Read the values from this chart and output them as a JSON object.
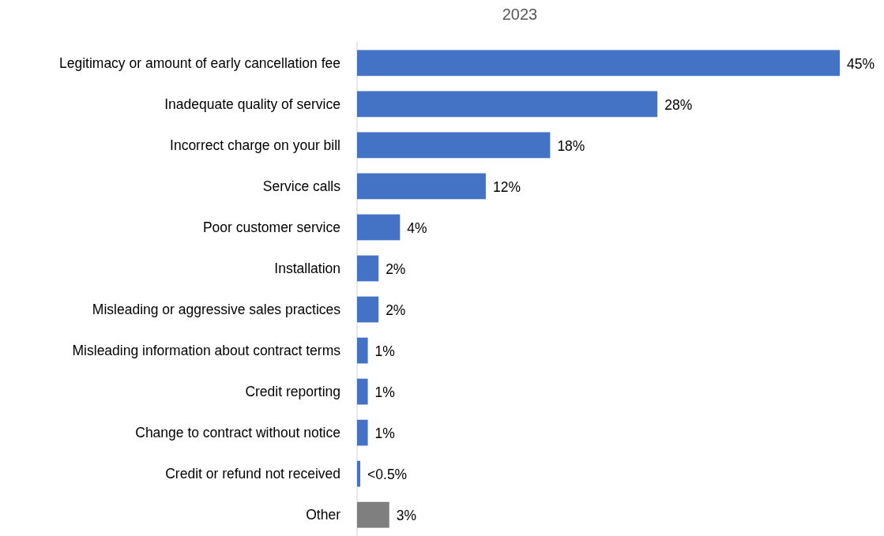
{
  "chart_data": {
    "type": "bar",
    "orientation": "horizontal",
    "title": "2023",
    "categories": [
      "Legitimacy or amount of early cancellation fee",
      "Inadequate quality of service",
      "Incorrect charge on your bill",
      "Service calls",
      "Poor customer service",
      "Installation",
      "Misleading or aggressive sales practices",
      "Misleading information about contract terms",
      "Credit reporting",
      "Change to contract without notice",
      "Credit or refund not received",
      "Other"
    ],
    "values": [
      45,
      28,
      18,
      12,
      4,
      2,
      2,
      1,
      1,
      1,
      0.3,
      3
    ],
    "colors": [
      "#4472c4",
      "#4472c4",
      "#4472c4",
      "#4472c4",
      "#4472c4",
      "#4472c4",
      "#4472c4",
      "#4472c4",
      "#4472c4",
      "#4472c4",
      "#4472c4",
      "#7f7f7f"
    ],
    "value_labels": [
      "45%",
      "28%",
      "18%",
      "12%",
      "4%",
      "2%",
      "2%",
      "1%",
      "1%",
      "1%",
      "<0.5%",
      "3%"
    ]
  }
}
